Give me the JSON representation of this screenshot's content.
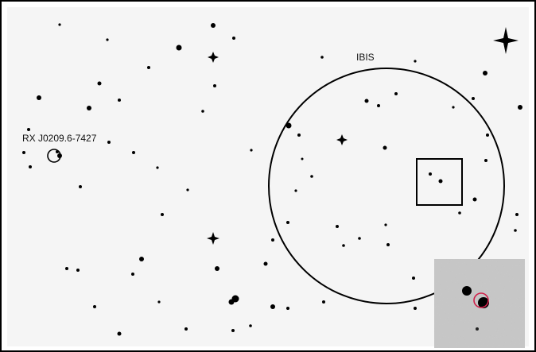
{
  "labels": {
    "instrument": "IBIS",
    "source": "RX J0209.6-7427"
  }
}
